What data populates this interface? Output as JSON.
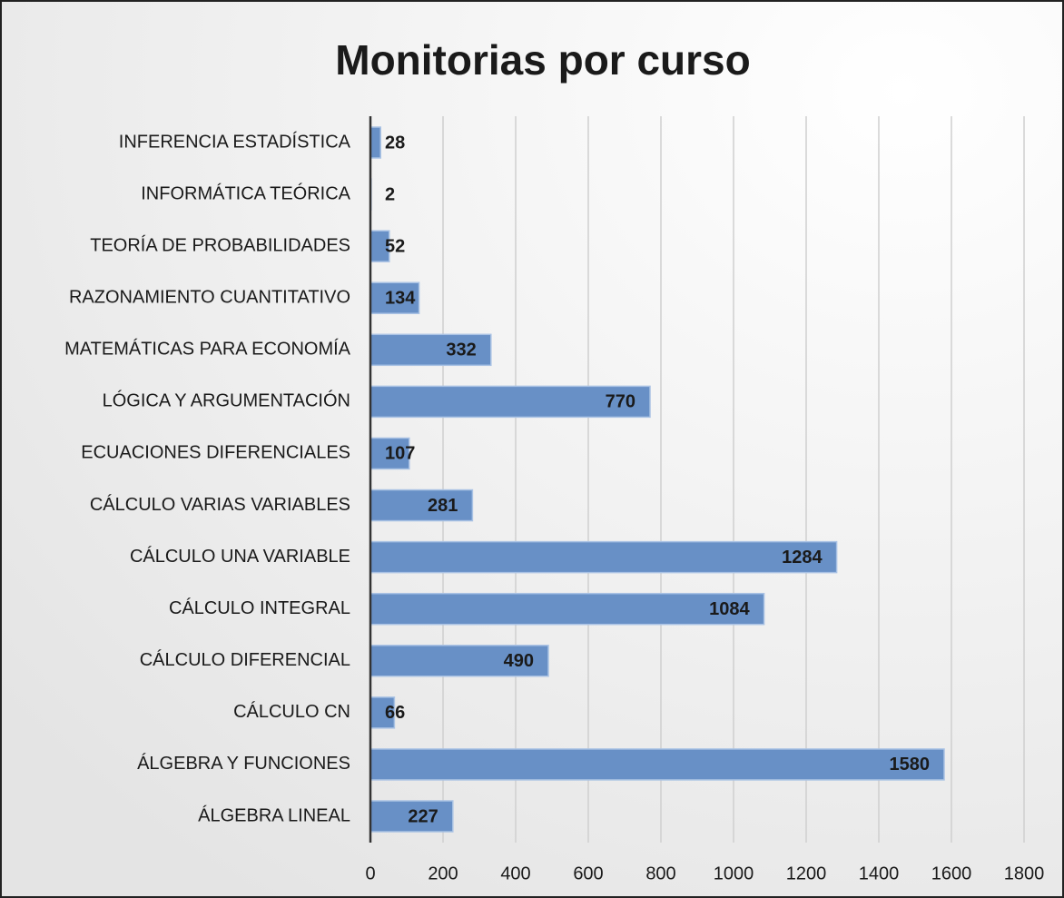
{
  "chart_data": {
    "type": "barh",
    "title": "Monitorias por curso",
    "categories": [
      "INFERENCIA ESTADÍSTICA",
      "INFORMÁTICA TEÓRICA",
      "TEORÍA DE PROBABILIDADES",
      "RAZONAMIENTO CUANTITATIVO",
      "MATEMÁTICAS PARA ECONOMÍA",
      "LÓGICA Y ARGUMENTACIÓN",
      "ECUACIONES DIFERENCIALES",
      "CÁLCULO VARIAS VARIABLES",
      "CÁLCULO UNA VARIABLE",
      "CÁLCULO INTEGRAL",
      "CÁLCULO DIFERENCIAL",
      "CÁLCULO CN",
      "ÁLGEBRA Y FUNCIONES",
      "ÁLGEBRA LINEAL"
    ],
    "values": [
      28,
      2,
      52,
      134,
      332,
      770,
      107,
      281,
      1284,
      1084,
      490,
      66,
      1580,
      227
    ],
    "color": "#6890c6",
    "xlim": [
      0,
      1800
    ],
    "xticks": [
      0,
      200,
      400,
      600,
      800,
      1000,
      1200,
      1400,
      1600,
      1800
    ],
    "grid": true
  }
}
